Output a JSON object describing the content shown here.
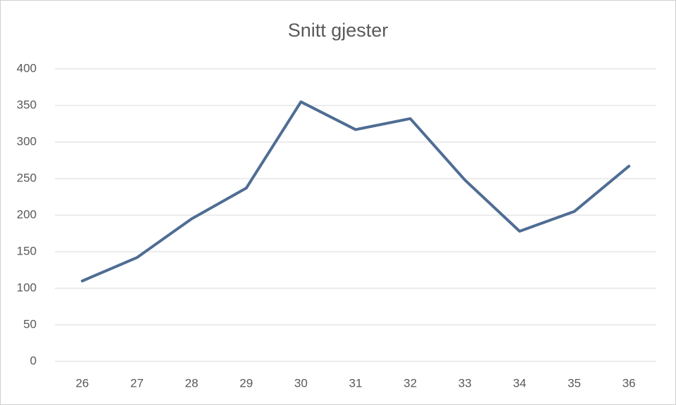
{
  "chart_data": {
    "type": "line",
    "title": "Snitt gjester",
    "categories": [
      "26",
      "27",
      "28",
      "29",
      "30",
      "31",
      "32",
      "33",
      "34",
      "35",
      "36"
    ],
    "values": [
      110,
      142,
      195,
      237,
      355,
      317,
      332,
      248,
      178,
      205,
      267
    ],
    "color": "#4f6d94",
    "ylim": [
      0,
      400
    ],
    "yticks": [
      0,
      50,
      100,
      150,
      200,
      250,
      300,
      350,
      400
    ],
    "grid": true
  }
}
